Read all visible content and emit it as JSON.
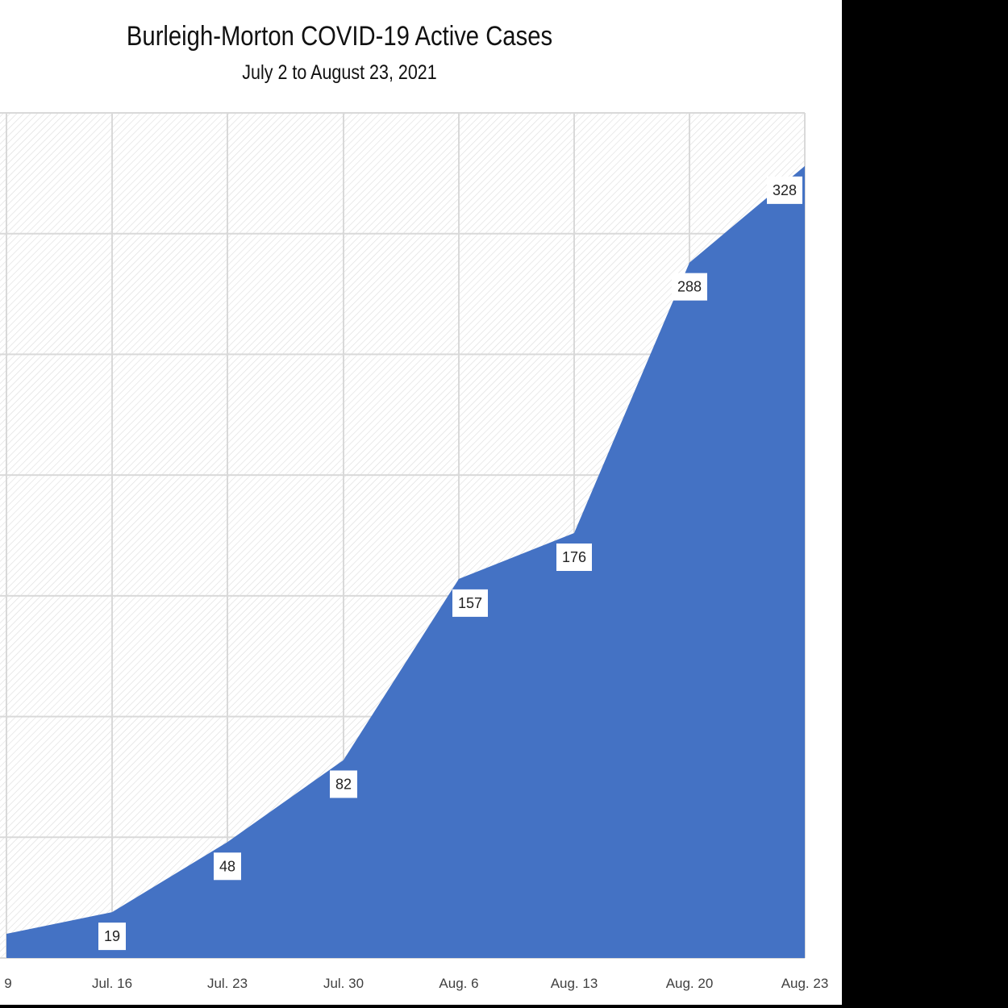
{
  "chart_data": {
    "type": "area",
    "title": "Burleigh-Morton COVID-19 Active Cases",
    "subtitle": "July 2 to August 23, 2021",
    "xlabel": "",
    "ylabel": "",
    "categories": [
      "9",
      "Jul. 16",
      "Jul. 23",
      "Jul. 30",
      "Aug. 6",
      "Aug. 13",
      "Aug. 20",
      "Aug. 23"
    ],
    "series": [
      {
        "values": [
          10,
          19,
          48,
          82,
          157,
          176,
          288,
          328
        ],
        "data_labels": [
          "",
          "19",
          "48",
          "82",
          "157",
          "176",
          "288",
          "328"
        ]
      }
    ],
    "ylim": [
      0,
      350
    ],
    "grid": true,
    "colors": {
      "fill": "#4472c4",
      "grid": "#d9d9d9",
      "hatch": "#dcdcdc"
    }
  }
}
